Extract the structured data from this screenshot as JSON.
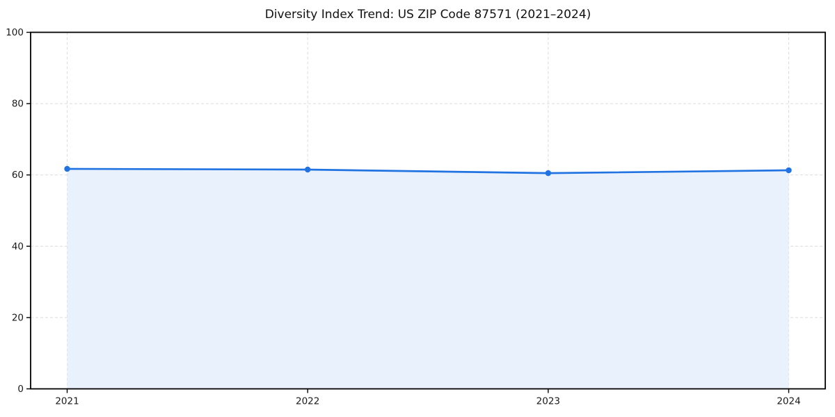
{
  "chart_data": {
    "type": "line",
    "title": "Diversity Index Trend: US ZIP Code 87571 (2021–2024)",
    "xlabel": "",
    "ylabel": "",
    "categories": [
      "2021",
      "2022",
      "2023",
      "2024"
    ],
    "series": [
      {
        "name": "Diversity Index",
        "values": [
          61.7,
          61.5,
          60.5,
          61.3
        ]
      }
    ],
    "ylim": [
      0,
      100
    ],
    "yticks": [
      0,
      20,
      40,
      60,
      80,
      100
    ],
    "grid": true,
    "grid_style": "dashed",
    "area_fill": true,
    "markers": true,
    "legend_position": "none",
    "colors": {
      "line": "#2173e2",
      "marker": "#2173e2",
      "area_fill": "#e8f1fc",
      "grid": "#dcdcdc",
      "spine": "#000000",
      "tick_label": "#1a1a1a",
      "title": "#111111",
      "background": "#ffffff"
    }
  }
}
